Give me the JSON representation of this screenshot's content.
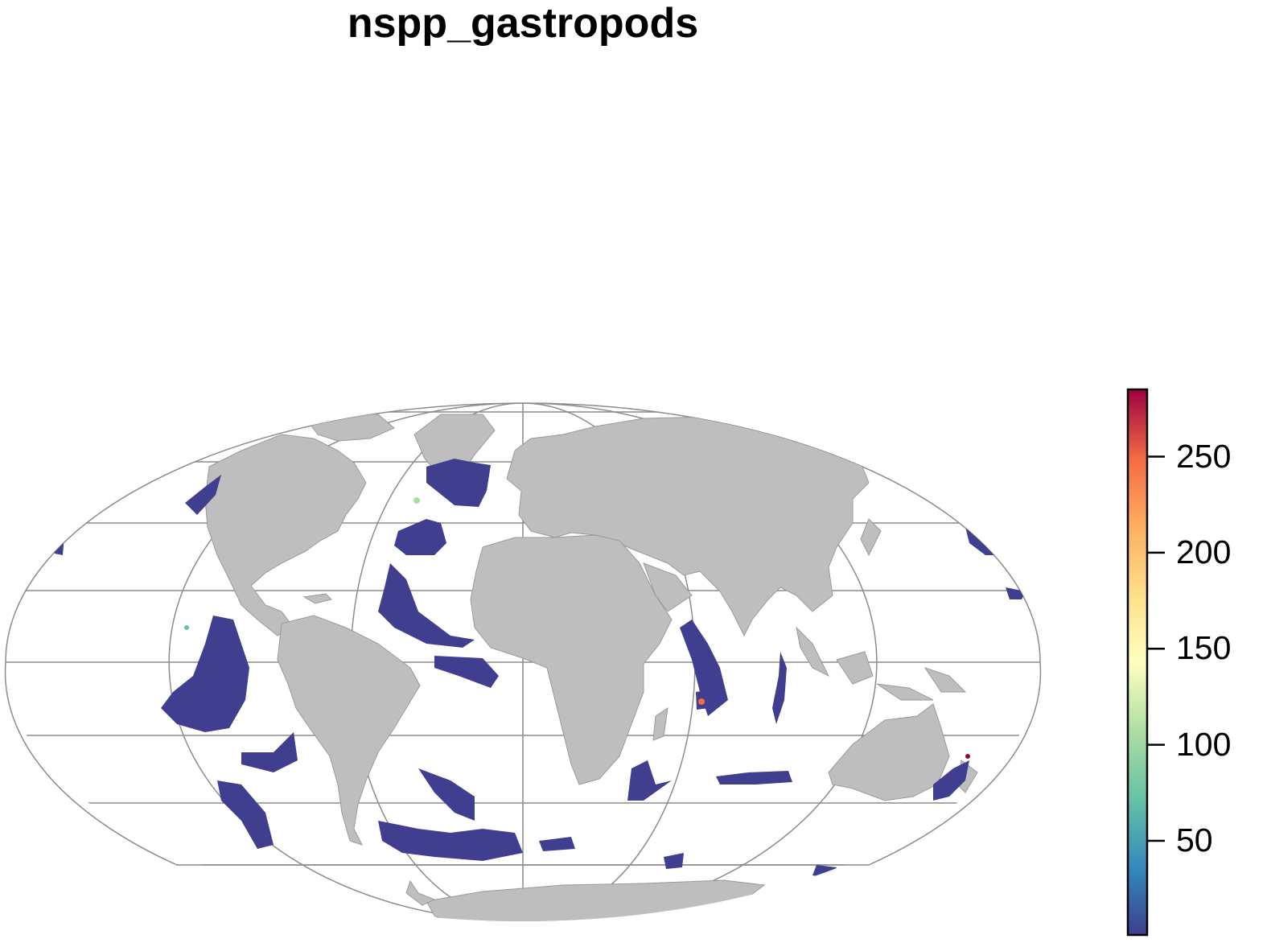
{
  "title": "nspp_gastropods",
  "colors": {
    "land": "#bebebe",
    "land_border": "#9a9a9a",
    "graticule": "#8c8c8c",
    "low": "#3f3e8f"
  },
  "legend": {
    "ticks": [
      {
        "value": 50,
        "label": "50"
      },
      {
        "value": 100,
        "label": "100"
      },
      {
        "value": 150,
        "label": "150"
      },
      {
        "value": 200,
        "label": "200"
      },
      {
        "value": 250,
        "label": "250"
      }
    ],
    "min": 1,
    "max": 285,
    "palette": "Spectral (reversed)"
  }
}
